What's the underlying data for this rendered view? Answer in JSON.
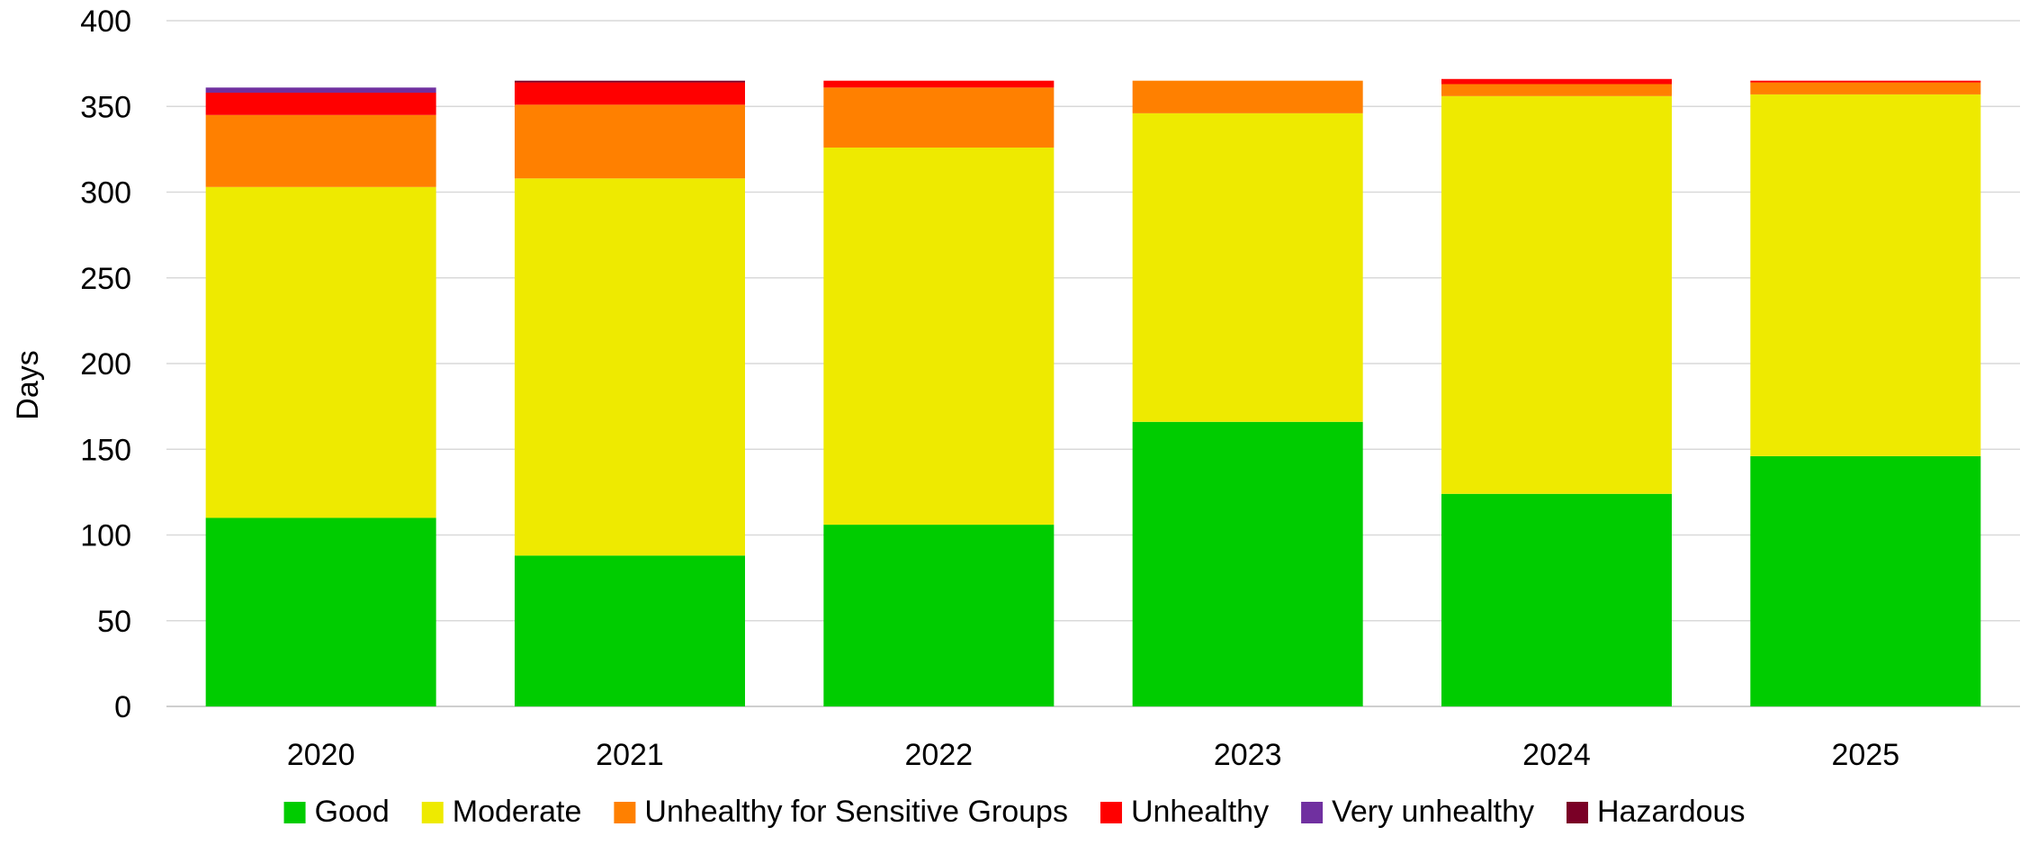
{
  "chart_data": {
    "type": "bar",
    "stacked": true,
    "title": "",
    "xlabel": "",
    "ylabel": "Days",
    "ylim": [
      0,
      400
    ],
    "yticks": [
      0,
      50,
      100,
      150,
      200,
      250,
      300,
      350,
      400
    ],
    "grid": "horizontal",
    "legend_position": "bottom",
    "categories": [
      "2020",
      "2021",
      "2022",
      "2023",
      "2024",
      "2025"
    ],
    "series": [
      {
        "name": "Good",
        "color": "#00cc00",
        "values": [
          110,
          88,
          106,
          166,
          124,
          146
        ]
      },
      {
        "name": "Moderate",
        "color": "#eeea00",
        "values": [
          193,
          220,
          220,
          180,
          232,
          211
        ]
      },
      {
        "name": "Unhealthy for Sensitive Groups",
        "color": "#ff8000",
        "values": [
          42,
          43,
          35,
          19,
          7,
          7
        ]
      },
      {
        "name": "Unhealthy",
        "color": "#ff0000",
        "values": [
          13,
          13,
          4,
          0,
          3,
          1
        ]
      },
      {
        "name": "Very unhealthy",
        "color": "#7030a0",
        "values": [
          3,
          0,
          0,
          0,
          0,
          0
        ]
      },
      {
        "name": "Hazardous",
        "color": "#7a0026",
        "values": [
          0,
          1,
          0,
          0,
          0,
          0
        ]
      }
    ]
  }
}
